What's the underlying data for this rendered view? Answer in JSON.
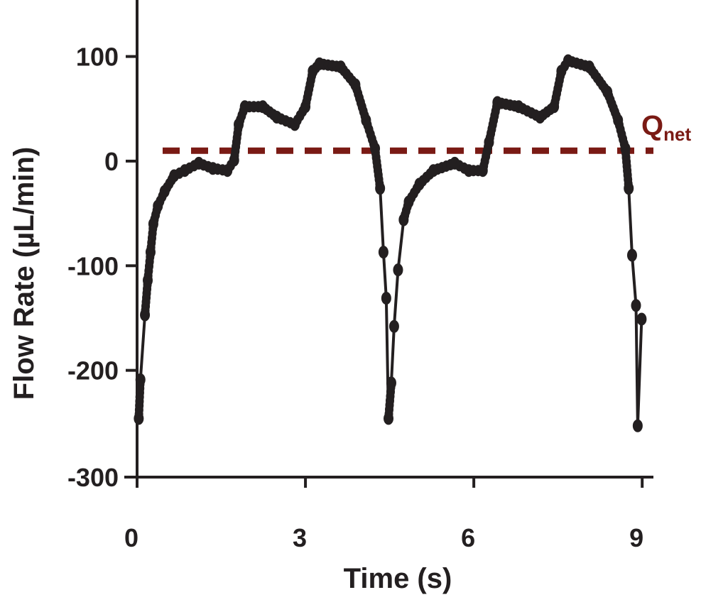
{
  "chart_data": {
    "type": "line",
    "title": "",
    "xlabel": "Time (s)",
    "ylabel": "Flow Rate (µL/min)",
    "xlim": [
      0,
      9.2
    ],
    "ylim": [
      -300,
      154
    ],
    "xticks": [
      0,
      3,
      6,
      9
    ],
    "yticks": [
      100,
      0,
      -100,
      -200,
      -300
    ],
    "xtick_labels": [
      "0",
      "3",
      "6",
      "9"
    ],
    "ytick_labels": [
      "100",
      "0",
      "-100",
      "-200",
      "-300"
    ],
    "grid": false,
    "line_color": "#231f20",
    "reference_line": {
      "label_main": "Q",
      "label_sub": "net",
      "value": 10,
      "style": "dashed",
      "color": "#7a1a14"
    },
    "series": [
      {
        "x": [
          0.03,
          0.06,
          0.14,
          0.19,
          0.24,
          0.29,
          0.37,
          0.49,
          0.66,
          0.85,
          1.1,
          1.35,
          1.61,
          1.73,
          1.81,
          1.92,
          2.24,
          2.49,
          2.81,
          3.0,
          3.13,
          3.25,
          3.63,
          3.89,
          4.08,
          4.24,
          4.33,
          4.39,
          4.44,
          4.48,
          4.53,
          4.58,
          4.65,
          4.75,
          4.84,
          5.03,
          5.28,
          5.66,
          5.91,
          6.16,
          6.27,
          6.42,
          6.8,
          7.18,
          7.43,
          7.56,
          7.68,
          8.06,
          8.38,
          8.57,
          8.7,
          8.76,
          8.82,
          8.89,
          8.92,
          8.99
        ],
        "y": [
          -246,
          -209,
          -147,
          -114,
          -87,
          -60,
          -43,
          -29,
          -14,
          -9,
          -2,
          -7,
          -9,
          1,
          35,
          52,
          52,
          42,
          35,
          52,
          86,
          93,
          90,
          73,
          39,
          12,
          -26,
          -87,
          -131,
          -246,
          -212,
          -158,
          -104,
          -56,
          -39,
          -22,
          -9,
          -2,
          -9,
          -9,
          18,
          56,
          52,
          42,
          52,
          86,
          96,
          90,
          66,
          39,
          12,
          -26,
          -90,
          -138,
          -253,
          -151
        ]
      }
    ]
  }
}
